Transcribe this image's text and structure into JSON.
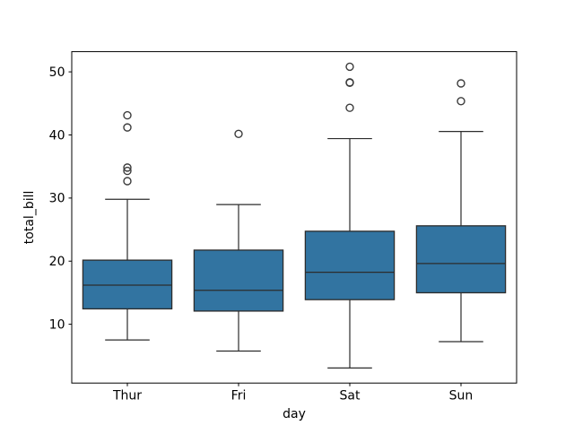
{
  "chart_data": {
    "type": "boxplot",
    "xlabel": "day",
    "ylabel": "total_bill",
    "categories": [
      "Thur",
      "Fri",
      "Sat",
      "Sun"
    ],
    "yticks": [
      10,
      20,
      30,
      40,
      50
    ],
    "ylim": [
      0.68,
      53.2
    ],
    "grid": false,
    "legend_position": "none",
    "series": [
      {
        "category": "Thur",
        "whislo": 7.51,
        "q1": 12.44,
        "med": 16.2,
        "q3": 20.16,
        "whishi": 29.8,
        "fliers": [
          32.68,
          34.3,
          34.83,
          41.19,
          43.11
        ]
      },
      {
        "category": "Fri",
        "whislo": 5.75,
        "q1": 12.09,
        "med": 15.38,
        "q3": 21.75,
        "whishi": 28.97,
        "fliers": [
          40.17
        ]
      },
      {
        "category": "Sat",
        "whislo": 3.07,
        "q1": 13.9,
        "med": 18.24,
        "q3": 24.74,
        "whishi": 39.42,
        "fliers": [
          44.3,
          48.27,
          48.33,
          50.81
        ]
      },
      {
        "category": "Sun",
        "whislo": 7.25,
        "q1": 14.99,
        "med": 19.63,
        "q3": 25.6,
        "whishi": 40.55,
        "fliers": [
          45.35,
          48.17
        ]
      }
    ],
    "colors": {
      "box_fill": "#3274a1",
      "box_edge": "#2c2c2c",
      "whisker": "#2c2c2c",
      "median": "#2c2c2c",
      "flier_edge": "#3c3c3c",
      "spine": "#000000",
      "background": "#ffffff"
    }
  }
}
